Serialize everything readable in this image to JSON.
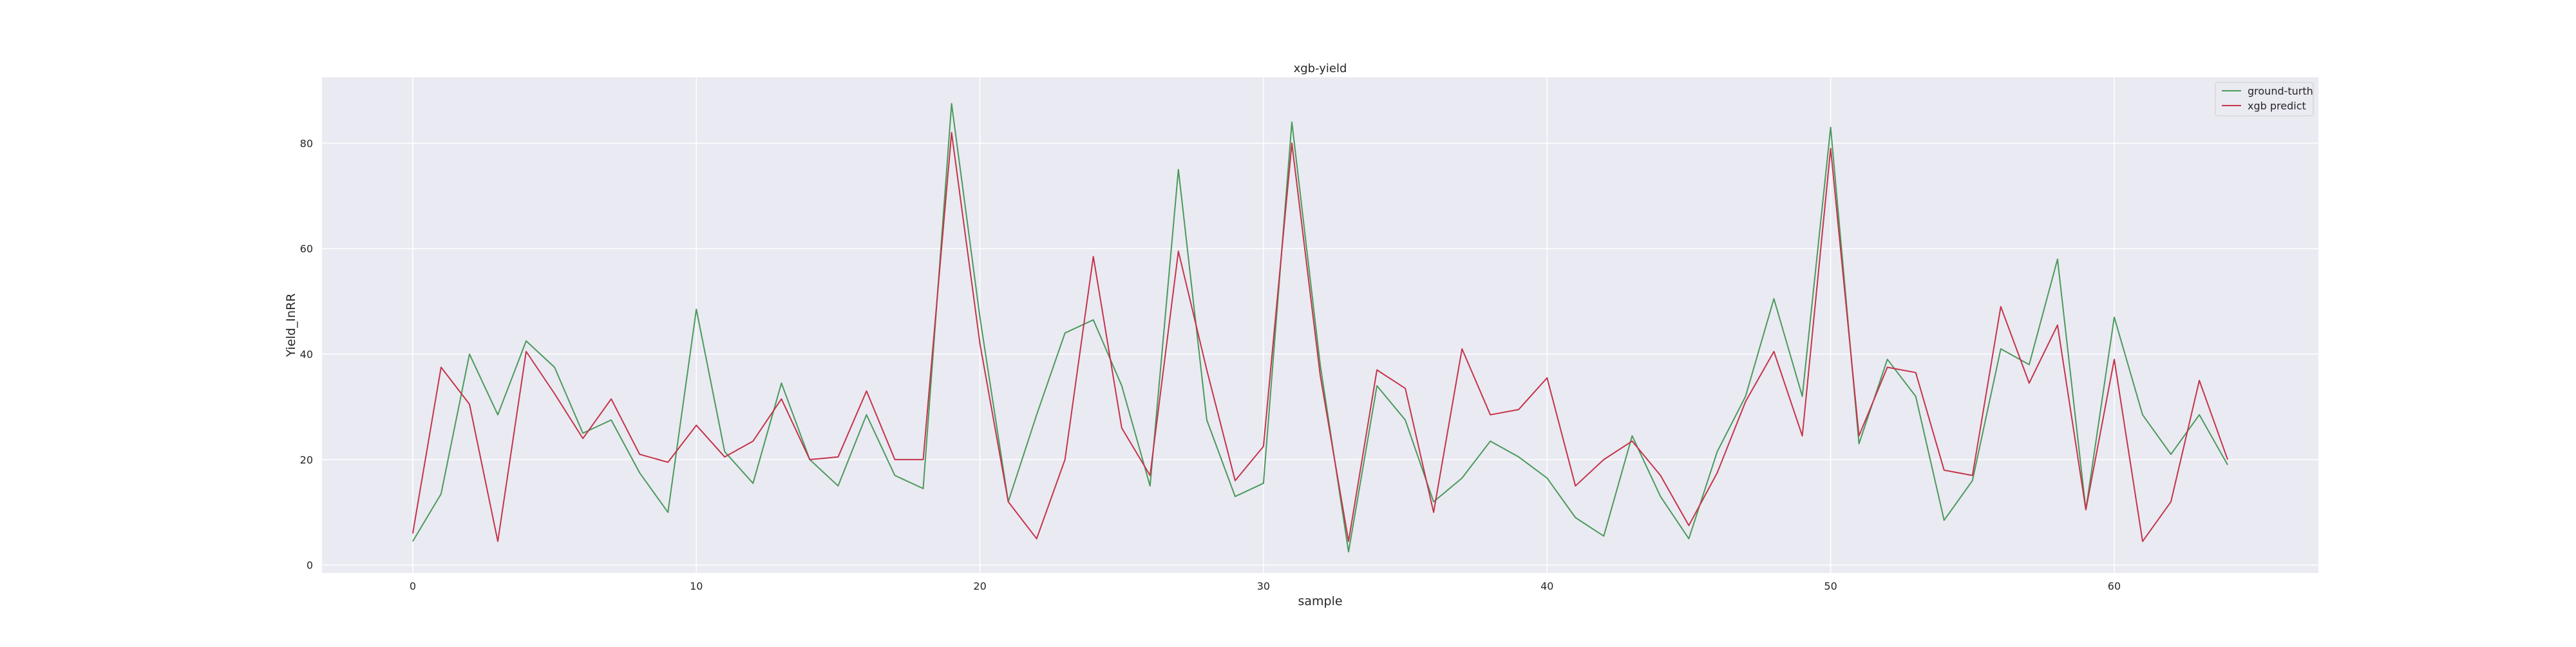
{
  "chart_data": {
    "type": "line",
    "title": "xgb-yield",
    "xlabel": "sample",
    "ylabel": "Yield_InRR",
    "xlim": [
      -3.2,
      67.2
    ],
    "ylim": [
      -1.5,
      92.5
    ],
    "xticks": [
      0,
      10,
      20,
      30,
      40,
      50,
      60
    ],
    "yticks": [
      0,
      20,
      40,
      60,
      80
    ],
    "grid": true,
    "legend_position": "top-right",
    "x": [
      0,
      1,
      2,
      3,
      4,
      5,
      6,
      7,
      8,
      9,
      10,
      11,
      12,
      13,
      14,
      15,
      16,
      17,
      18,
      19,
      20,
      21,
      22,
      23,
      24,
      25,
      26,
      27,
      28,
      29,
      30,
      31,
      32,
      33,
      34,
      35,
      36,
      37,
      38,
      39,
      40,
      41,
      42,
      43,
      44,
      45,
      46,
      47,
      48,
      49,
      50,
      51,
      52,
      53,
      54,
      55,
      56,
      57,
      58,
      59,
      60,
      61,
      62,
      63,
      64
    ],
    "series": [
      {
        "name": "ground-turth",
        "color": "#4a9a5b",
        "values": [
          4.5,
          13.5,
          40,
          28.5,
          42.5,
          37.5,
          25,
          27.5,
          17.5,
          10,
          48.5,
          21.5,
          15.5,
          34.5,
          20,
          15,
          28.5,
          17,
          14.5,
          87.5,
          47,
          12,
          28.5,
          44,
          46.5,
          34,
          15,
          75,
          27.5,
          13,
          15.5,
          84,
          38,
          2.5,
          34,
          27.5,
          12,
          16.5,
          23.5,
          20.5,
          16.5,
          9,
          5.5,
          24.5,
          13,
          5,
          21.5,
          32,
          50.5,
          32,
          83,
          23,
          39,
          32,
          8.5,
          16,
          41,
          38,
          58,
          10.5,
          47,
          28.5,
          21,
          28.5,
          19
        ]
      },
      {
        "name": "xgb predict",
        "color": "#c4344a",
        "values": [
          6,
          37.5,
          30.5,
          4.5,
          40.5,
          32.5,
          24,
          31.5,
          21,
          19.5,
          26.5,
          20.5,
          23.5,
          31.5,
          20,
          20.5,
          33,
          20,
          20,
          82,
          42,
          12,
          5,
          20,
          58.5,
          26,
          17,
          59.5,
          37,
          16,
          22.5,
          80,
          36,
          4.5,
          37,
          33.5,
          10,
          41,
          28.5,
          29.5,
          35.5,
          15,
          20,
          23.5,
          17,
          7.5,
          17.5,
          31,
          40.5,
          24.5,
          79,
          24.5,
          37.5,
          36.5,
          18,
          17,
          49,
          34.5,
          45.5,
          10.5,
          39,
          4.5,
          12,
          35,
          20
        ]
      }
    ]
  }
}
